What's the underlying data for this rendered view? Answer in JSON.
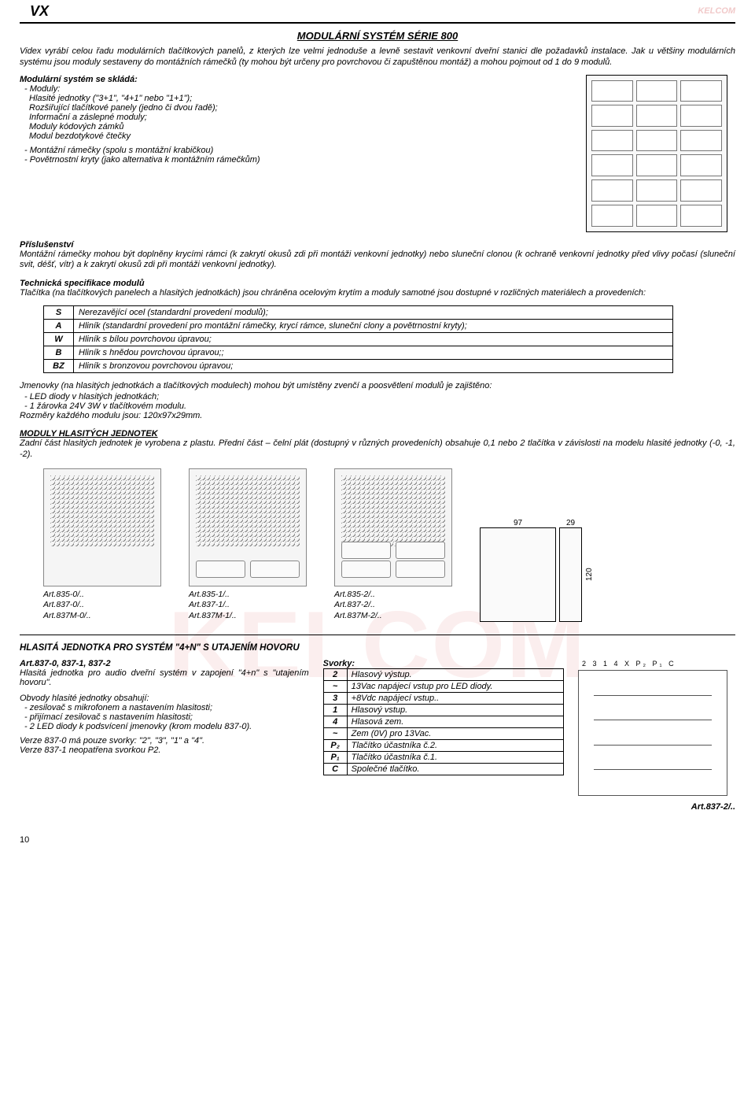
{
  "header": {
    "logo_text": "VX",
    "brand_badge": "KELCOM"
  },
  "title": "MODULÁRNÍ SYSTÉM SÉRIE 800",
  "intro_p1": "Videx vyrábí celou řadu modulárních tlačítkových panelů, z kterých lze velmi jednoduše a levně sestavit venkovní dveřní stanici dle požadavků instalace. Jak u většiny modulárních systému jsou moduly sestaveny do montážních rámečků (ty mohou být určeny pro povrchovou či zapuštěnou montáž) a mohou pojmout od 1 do 9 modulů.",
  "components": {
    "heading": "Modulární systém se skládá:",
    "item_modules": "Moduly:",
    "sub1": "Hlasité jednotky (\"3+1\", \"4+1\" nebo \"1+1\");",
    "sub2": "Rozšiřující tlačítkové panely (jedno či dvou řadě);",
    "sub3": "Informační a záslepné moduly;",
    "sub4": "Moduly kódových zámků",
    "sub5": "Modul bezdotykové čtečky",
    "item2": "Montážní rámečky (spolu s montážní krabičkou)",
    "item3": "Povětrnostní kryty (jako alternativa k montážním rámečkům)"
  },
  "accessories": {
    "heading": "Příslušenství",
    "text": "Montážní rámečky mohou být doplněny krycími rámci (k zakrytí okusů zdi při montáži venkovní jednotky) nebo sluneční clonou (k ochraně venkovní jednotky před vlivy počasí (sluneční svit, déšť, vítr) a k zakrytí okusů zdi při montáži venkovní jednotky)."
  },
  "techspec": {
    "heading": "Technická specifikace modulů",
    "text": "Tlačítka (na tlačítkových panelech a hlasitých jednotkách)  jsou chráněna ocelovým krytím a moduly samotné jsou dostupné v rozličných materiálech a provedeních:"
  },
  "materials": {
    "S": "Nerezavějící ocel (standardní provedení modulů);",
    "A": "Hliník (standardní provedení pro montážní rámečky, krycí rámce, sluneční clony a povětrnostní kryty);",
    "W": "Hliník s bílou povrchovou úpravou;",
    "B": "Hliník s hnědou povrchovou úpravou;;",
    "BZ": "Hliník s bronzovou povrchovou úpravou;"
  },
  "nameplates": {
    "intro": "Jmenovky (na hlasitých jednotkách a tlačítkových modulech) mohou být umístěny zvenčí a poosvětlení modulů je zajištěno:",
    "li1": "LED diody v hlasitých jednotkách;",
    "li2": "1 žárovka 24V 3W v tlačítkovém modulu.",
    "dims": "Rozměry každého modulu jsou: 120x97x29mm."
  },
  "loud_modules": {
    "heading": "MODULY HLASITÝCH JEDNOTEK",
    "text": "Zadní část hlasitých jednotek je vyrobena z plastu. Přední část – čelní plát (dostupný v různých provedeních) obsahuje 0,1 nebo 2 tlačítka v závislosti na modelu hlasité jednotky (-0, -1, -2)."
  },
  "module_dims": {
    "w": "97",
    "d": "29",
    "h": "120"
  },
  "arts": {
    "c1": [
      "Art.835-0/..",
      "Art.837-0/..",
      "Art.837M-0/.."
    ],
    "c2": [
      "Art.835-1/..",
      "Art.837-1/..",
      "Art.837M-1/.."
    ],
    "c3": [
      "Art.835-2/..",
      "Art.837-2/..",
      "Art.837M-2/.."
    ]
  },
  "unit4n": {
    "heading": "HLASITÁ JEDNOTKA PRO SYSTÉM \"4+N\" S UTAJENÍM HOVORU",
    "model_heading": "Art.837-0, 837-1, 837-2",
    "desc": "Hlasitá jednotka pro audio dveřní systém v zapojení \"4+n\" s \"utajením hovoru\".",
    "circuits_h": "Obvody hlasité jednotky obsahují:",
    "c1": "zesilovač s mikrofonem a nastavením hlasitosti;",
    "c2": "přijímací zesilovač s nastavením hlasitosti;",
    "c3": "2 LED diody k podsvícení jmenovky (krom modelu 837-0).",
    "note1": "Verze 837-0 má pouze svorky: \"2\", \"3\", \"1\" a \"4\".",
    "note2": "Verze 837-1 neopatřena svorkou P2.",
    "terminals_h": "Svorky:",
    "schematic_caption": "Art.837-2/.."
  },
  "terminals": [
    {
      "k": "2",
      "v": "Hlasový výstup."
    },
    {
      "k": "~",
      "v": "13Vac napájecí vstup pro LED diody."
    },
    {
      "k": "3",
      "v": "+8Vdc napájecí vstup.."
    },
    {
      "k": "1",
      "v": "Hlasový vstup."
    },
    {
      "k": "4",
      "v": "Hlasová zem."
    },
    {
      "k": "~",
      "v": "Zem (0V) pro 13Vac."
    },
    {
      "k": "P₂",
      "v": "Tlačítko účastníka č.2."
    },
    {
      "k": "P₁",
      "v": "Tlačítko účastníka č.1."
    },
    {
      "k": "C",
      "v": "Společné tlačítko."
    }
  ],
  "page_number": "10"
}
